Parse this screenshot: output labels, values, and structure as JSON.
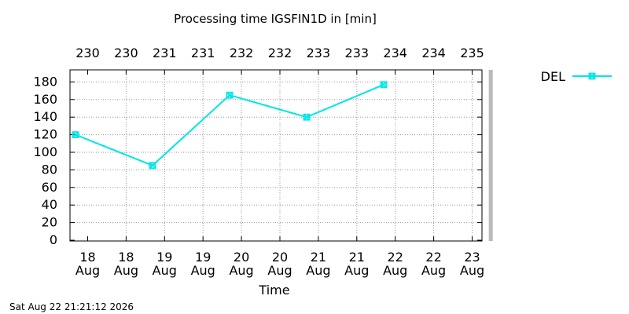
{
  "chart_data": {
    "type": "line",
    "title": "Processing time IGSFIN1D in [min]",
    "xlabel": "Time",
    "ylabel": "",
    "ylim": [
      0,
      190
    ],
    "yticks": [
      0,
      20,
      40,
      60,
      80,
      100,
      120,
      140,
      160,
      180
    ],
    "x_ticks_bottom": [
      {
        "day": "18",
        "month": "Aug"
      },
      {
        "day": "18",
        "month": "Aug"
      },
      {
        "day": "19",
        "month": "Aug"
      },
      {
        "day": "19",
        "month": "Aug"
      },
      {
        "day": "20",
        "month": "Aug"
      },
      {
        "day": "20",
        "month": "Aug"
      },
      {
        "day": "21",
        "month": "Aug"
      },
      {
        "day": "21",
        "month": "Aug"
      },
      {
        "day": "22",
        "month": "Aug"
      },
      {
        "day": "22",
        "month": "Aug"
      },
      {
        "day": "23",
        "month": "Aug"
      }
    ],
    "x_ticks_top": [
      "230",
      "230",
      "231",
      "231",
      "232",
      "232",
      "233",
      "233",
      "234",
      "234",
      "235"
    ],
    "series": [
      {
        "name": "DEL",
        "color": "#00e5e5",
        "marker": "x-square",
        "points": [
          {
            "x": "2026-08-17 12:00",
            "y": 120
          },
          {
            "x": "2026-08-18 12:00",
            "y": 85
          },
          {
            "x": "2026-08-19 12:00",
            "y": 165
          },
          {
            "x": "2026-08-20 12:00",
            "y": 140
          },
          {
            "x": "2026-08-21 12:00",
            "y": 177
          }
        ]
      }
    ],
    "current_time_marker": {
      "x": "2026-08-22 21:21",
      "color": "#bbbbbb"
    },
    "grid": true,
    "legend_position": "top-right outside"
  },
  "footer": {
    "timestamp": "Sat Aug 22 21:21:12 2026"
  }
}
